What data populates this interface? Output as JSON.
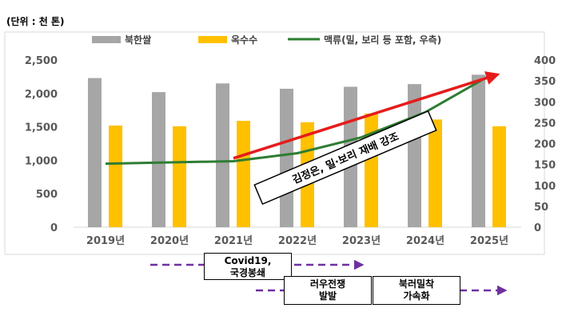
{
  "chart_data": {
    "type": "bar",
    "unit_label": "(단위 : 천 톤)",
    "categories": [
      "2019년",
      "2020년",
      "2021년",
      "2022년",
      "2023년",
      "2024년",
      "2025년"
    ],
    "series": [
      {
        "name": "북한쌀",
        "type": "bar",
        "axis": "left",
        "color": "#a6a6a6",
        "values": [
          2230,
          2020,
          2150,
          2070,
          2100,
          2140,
          2280
        ]
      },
      {
        "name": "옥수수",
        "type": "bar",
        "axis": "left",
        "color": "#ffc000",
        "values": [
          1520,
          1510,
          1590,
          1570,
          1700,
          1610,
          1510
        ]
      },
      {
        "name": "맥류(밀, 보리 등 포함, 우측)",
        "type": "line",
        "axis": "right",
        "color": "#2e7d32",
        "values": [
          152,
          155,
          158,
          177,
          215,
          275,
          362
        ]
      }
    ],
    "y_left": {
      "min": 0,
      "max": 2500,
      "ticks": [
        "0",
        "500",
        "1,000",
        "1,500",
        "2,000",
        "2,500"
      ]
    },
    "y_right": {
      "min": 0,
      "max": 400,
      "ticks": [
        "0",
        "50",
        "100",
        "150",
        "200",
        "250",
        "300",
        "350",
        "400"
      ]
    },
    "trend_arrow": {
      "color": "#e51c1c",
      "from": {
        "x": "2021년",
        "y_right": 165
      },
      "to": {
        "x": "2025년",
        "y_right": 365
      }
    },
    "trend_label": "김정은, 밀·보리 재배 강조",
    "grid": false,
    "legend_position": "top"
  },
  "events": {
    "color": "#7030a0",
    "items": [
      {
        "label_line1": "Covid19,",
        "label_line2": "국경봉쇄"
      },
      {
        "label_line1": "러우전쟁",
        "label_line2": "발발"
      },
      {
        "label_line1": "북러밀착",
        "label_line2": "가속화"
      }
    ]
  }
}
